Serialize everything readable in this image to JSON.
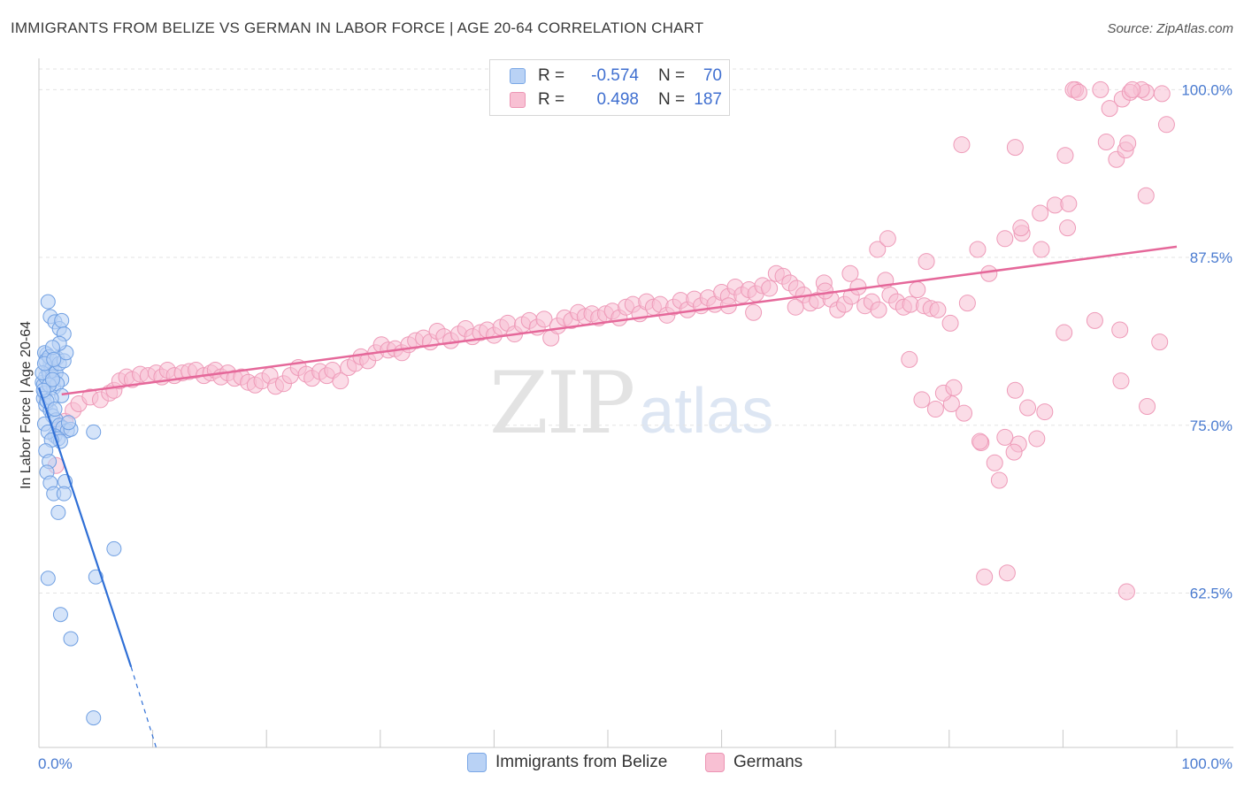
{
  "title": "IMMIGRANTS FROM BELIZE VS GERMAN IN LABOR FORCE | AGE 20-64 CORRELATION CHART",
  "source": "Source: ZipAtlas.com",
  "watermark": {
    "zip": "ZIP",
    "atlas": "atlas"
  },
  "legend": {
    "r_label": "R =",
    "n_label": "N =",
    "rows": [
      {
        "r": "-0.574",
        "n": "70",
        "fill": "#b9d2f5",
        "stroke": "#7aa7e6"
      },
      {
        "r": "0.498",
        "n": "187",
        "fill": "#f8c0d3",
        "stroke": "#ec94b3"
      }
    ]
  },
  "bottom_legend": [
    {
      "label": "Immigrants from Belize",
      "fill": "#b9d2f5",
      "stroke": "#7aa7e6"
    },
    {
      "label": "Germans",
      "fill": "#f8c0d3",
      "stroke": "#ec94b3"
    }
  ],
  "chart_data": {
    "type": "scatter",
    "title": "IMMIGRANTS FROM BELIZE VS GERMAN IN LABOR FORCE | AGE 20-64 CORRELATION CHART",
    "xlabel": "",
    "ylabel": "In Labor Force | Age 20-64",
    "xlim": [
      0,
      100
    ],
    "ylim": [
      51,
      102
    ],
    "x_tick_labels": [
      {
        "value": 0,
        "label": "0.0%"
      },
      {
        "value": 100,
        "label": "100.0%"
      }
    ],
    "y_tick_labels": [
      {
        "value": 100,
        "label": "100.0%"
      },
      {
        "value": 87.5,
        "label": "87.5%"
      },
      {
        "value": 75,
        "label": "75.0%"
      },
      {
        "value": 62.5,
        "label": "62.5%"
      }
    ],
    "grid": true,
    "legend_position": "top-center",
    "colors": {
      "belize_fill": "#b9d2f5",
      "belize_stroke": "#6f9fe2",
      "belize_line": "#2f6fd6",
      "german_fill": "#f8c0d3",
      "german_stroke": "#ee9ab8",
      "german_line": "#e5689a"
    },
    "series": [
      {
        "name": "Immigrants from Belize",
        "trend": {
          "x": [
            0,
            8.1
          ],
          "y": [
            77.8,
            57.0
          ],
          "dashed_to": [
            10.3,
            51.0
          ]
        },
        "points": [
          [
            0.3,
            78.2
          ],
          [
            0.4,
            78.0
          ],
          [
            0.5,
            77.4
          ],
          [
            0.6,
            78.6
          ],
          [
            0.7,
            80.3
          ],
          [
            0.8,
            79.1
          ],
          [
            0.9,
            78.8
          ],
          [
            1.0,
            79.6
          ],
          [
            0.5,
            80.4
          ],
          [
            0.6,
            79.8
          ],
          [
            0.9,
            80.1
          ],
          [
            1.1,
            79.2
          ],
          [
            1.2,
            78.6
          ],
          [
            1.3,
            77.8
          ],
          [
            1.5,
            78.9
          ],
          [
            1.6,
            80.0
          ],
          [
            1.8,
            79.6
          ],
          [
            2.0,
            78.4
          ],
          [
            2.2,
            79.8
          ],
          [
            2.4,
            80.4
          ],
          [
            0.8,
            84.2
          ],
          [
            1.0,
            83.1
          ],
          [
            1.4,
            82.7
          ],
          [
            1.8,
            82.2
          ],
          [
            2.0,
            82.8
          ],
          [
            2.2,
            81.8
          ],
          [
            1.8,
            81.1
          ],
          [
            1.2,
            80.8
          ],
          [
            0.4,
            77.0
          ],
          [
            0.6,
            76.5
          ],
          [
            1.0,
            76.1
          ],
          [
            1.2,
            75.7
          ],
          [
            1.5,
            75.4
          ],
          [
            1.8,
            75.0
          ],
          [
            2.1,
            74.8
          ],
          [
            2.5,
            74.6
          ],
          [
            2.8,
            74.7
          ],
          [
            1.4,
            74.2
          ],
          [
            1.7,
            74.0
          ],
          [
            1.9,
            73.8
          ],
          [
            0.5,
            75.1
          ],
          [
            0.8,
            74.5
          ],
          [
            1.1,
            73.9
          ],
          [
            0.6,
            73.1
          ],
          [
            0.9,
            72.3
          ],
          [
            0.7,
            71.5
          ],
          [
            1.0,
            70.7
          ],
          [
            1.3,
            69.9
          ],
          [
            2.3,
            70.8
          ],
          [
            2.2,
            69.9
          ],
          [
            1.7,
            68.5
          ],
          [
            0.8,
            63.6
          ],
          [
            1.9,
            60.9
          ],
          [
            2.8,
            59.1
          ],
          [
            4.8,
            74.5
          ],
          [
            6.6,
            65.8
          ],
          [
            5.0,
            63.7
          ],
          [
            4.8,
            53.2
          ],
          [
            0.3,
            78.9
          ],
          [
            0.5,
            79.6
          ],
          [
            1.3,
            79.9
          ],
          [
            1.6,
            78.1
          ],
          [
            2.0,
            77.2
          ],
          [
            1.1,
            77.0
          ],
          [
            0.7,
            76.8
          ],
          [
            1.4,
            76.2
          ],
          [
            2.6,
            75.2
          ],
          [
            0.9,
            78.0
          ],
          [
            1.2,
            78.4
          ],
          [
            0.4,
            77.6
          ]
        ]
      },
      {
        "name": "Germans",
        "trend": {
          "x": [
            2,
            100
          ],
          "y": [
            77.3,
            88.3
          ]
        },
        "points": [
          [
            1.5,
            72.0
          ],
          [
            2.0,
            74.8
          ],
          [
            2.3,
            75.3
          ],
          [
            3.0,
            76.1
          ],
          [
            3.5,
            76.6
          ],
          [
            4.5,
            77.1
          ],
          [
            5.4,
            76.9
          ],
          [
            6.2,
            77.4
          ],
          [
            6.6,
            77.6
          ],
          [
            7.1,
            78.3
          ],
          [
            7.7,
            78.6
          ],
          [
            8.2,
            78.4
          ],
          [
            8.9,
            78.8
          ],
          [
            9.6,
            78.7
          ],
          [
            10.3,
            78.9
          ],
          [
            10.8,
            78.6
          ],
          [
            11.3,
            79.1
          ],
          [
            11.9,
            78.7
          ],
          [
            12.6,
            78.9
          ],
          [
            13.2,
            79.0
          ],
          [
            13.8,
            79.1
          ],
          [
            14.5,
            78.7
          ],
          [
            15.1,
            78.9
          ],
          [
            15.5,
            79.1
          ],
          [
            16.0,
            78.6
          ],
          [
            16.6,
            78.9
          ],
          [
            17.2,
            78.5
          ],
          [
            17.8,
            78.6
          ],
          [
            18.4,
            78.2
          ],
          [
            19.0,
            78.0
          ],
          [
            19.6,
            78.3
          ],
          [
            20.3,
            78.7
          ],
          [
            20.8,
            77.9
          ],
          [
            21.5,
            78.1
          ],
          [
            22.1,
            78.7
          ],
          [
            22.8,
            79.3
          ],
          [
            23.5,
            78.8
          ],
          [
            24.0,
            78.5
          ],
          [
            24.7,
            79.0
          ],
          [
            25.3,
            78.7
          ],
          [
            25.8,
            79.1
          ],
          [
            26.5,
            78.3
          ],
          [
            27.2,
            79.3
          ],
          [
            27.8,
            79.6
          ],
          [
            28.3,
            80.1
          ],
          [
            28.9,
            79.8
          ],
          [
            29.6,
            80.4
          ],
          [
            30.1,
            81.0
          ],
          [
            30.7,
            80.6
          ],
          [
            31.3,
            80.7
          ],
          [
            31.9,
            80.4
          ],
          [
            32.5,
            81.0
          ],
          [
            33.1,
            81.3
          ],
          [
            33.8,
            81.5
          ],
          [
            34.4,
            81.2
          ],
          [
            35.0,
            82.0
          ],
          [
            35.6,
            81.6
          ],
          [
            36.2,
            81.3
          ],
          [
            36.9,
            81.8
          ],
          [
            37.5,
            82.2
          ],
          [
            38.1,
            81.6
          ],
          [
            38.8,
            81.9
          ],
          [
            39.4,
            82.1
          ],
          [
            40.0,
            81.7
          ],
          [
            40.6,
            82.3
          ],
          [
            41.2,
            82.6
          ],
          [
            41.8,
            81.8
          ],
          [
            42.5,
            82.5
          ],
          [
            43.1,
            82.8
          ],
          [
            43.8,
            82.3
          ],
          [
            44.4,
            82.9
          ],
          [
            45.0,
            81.5
          ],
          [
            45.6,
            82.4
          ],
          [
            46.2,
            83.0
          ],
          [
            46.8,
            82.8
          ],
          [
            47.4,
            83.4
          ],
          [
            48.0,
            83.1
          ],
          [
            48.6,
            83.3
          ],
          [
            49.2,
            83.0
          ],
          [
            49.8,
            83.3
          ],
          [
            50.4,
            83.5
          ],
          [
            51.0,
            83.0
          ],
          [
            51.6,
            83.8
          ],
          [
            52.2,
            84.0
          ],
          [
            52.8,
            83.3
          ],
          [
            53.4,
            84.2
          ],
          [
            54.0,
            83.8
          ],
          [
            54.6,
            84.0
          ],
          [
            55.2,
            83.2
          ],
          [
            55.8,
            83.8
          ],
          [
            56.4,
            84.3
          ],
          [
            57.0,
            83.6
          ],
          [
            57.6,
            84.4
          ],
          [
            58.2,
            83.9
          ],
          [
            58.8,
            84.5
          ],
          [
            59.4,
            84.0
          ],
          [
            60.0,
            84.9
          ],
          [
            60.6,
            84.6
          ],
          [
            61.2,
            85.3
          ],
          [
            61.8,
            84.7
          ],
          [
            62.4,
            85.1
          ],
          [
            63.0,
            84.8
          ],
          [
            63.6,
            85.4
          ],
          [
            64.2,
            85.2
          ],
          [
            64.8,
            86.3
          ],
          [
            65.4,
            86.1
          ],
          [
            66.0,
            85.6
          ],
          [
            66.6,
            85.2
          ],
          [
            67.2,
            84.7
          ],
          [
            67.8,
            84.1
          ],
          [
            68.4,
            84.3
          ],
          [
            69.0,
            85.6
          ],
          [
            69.6,
            84.4
          ],
          [
            70.2,
            83.6
          ],
          [
            70.8,
            84.0
          ],
          [
            71.4,
            84.6
          ],
          [
            72.0,
            85.3
          ],
          [
            72.6,
            83.9
          ],
          [
            73.2,
            84.2
          ],
          [
            73.8,
            83.6
          ],
          [
            74.4,
            85.8
          ],
          [
            74.8,
            84.7
          ],
          [
            75.4,
            84.2
          ],
          [
            76.0,
            83.8
          ],
          [
            76.6,
            84.0
          ],
          [
            77.2,
            85.1
          ],
          [
            77.8,
            83.9
          ],
          [
            78.4,
            83.7
          ],
          [
            60.6,
            83.9
          ],
          [
            62.8,
            83.4
          ],
          [
            66.5,
            83.8
          ],
          [
            69.1,
            85.0
          ],
          [
            71.3,
            86.3
          ],
          [
            73.7,
            88.1
          ],
          [
            74.6,
            88.9
          ],
          [
            78.0,
            87.2
          ],
          [
            82.5,
            88.1
          ],
          [
            84.9,
            88.9
          ],
          [
            86.4,
            89.3
          ],
          [
            88.0,
            90.8
          ],
          [
            89.3,
            91.4
          ],
          [
            90.5,
            91.5
          ],
          [
            97.3,
            92.1
          ],
          [
            94.7,
            94.8
          ],
          [
            95.5,
            95.5
          ],
          [
            93.8,
            96.1
          ],
          [
            95.7,
            96.0
          ],
          [
            90.2,
            95.1
          ],
          [
            85.8,
            95.7
          ],
          [
            81.1,
            95.9
          ],
          [
            88.1,
            88.1
          ],
          [
            90.1,
            81.9
          ],
          [
            92.8,
            82.8
          ],
          [
            95.0,
            82.1
          ],
          [
            98.5,
            81.2
          ],
          [
            97.4,
            76.4
          ],
          [
            95.1,
            78.3
          ],
          [
            88.4,
            76.0
          ],
          [
            87.7,
            74.0
          ],
          [
            86.1,
            73.6
          ],
          [
            82.8,
            73.7
          ],
          [
            80.2,
            76.6
          ],
          [
            76.5,
            79.9
          ],
          [
            77.6,
            76.9
          ],
          [
            78.8,
            76.2
          ],
          [
            79.5,
            77.4
          ],
          [
            80.4,
            77.8
          ],
          [
            81.3,
            75.9
          ],
          [
            82.7,
            73.8
          ],
          [
            84.9,
            74.1
          ],
          [
            84.4,
            70.9
          ],
          [
            85.7,
            73.0
          ],
          [
            86.9,
            76.3
          ],
          [
            84.0,
            72.2
          ],
          [
            85.8,
            77.6
          ],
          [
            83.1,
            63.7
          ],
          [
            85.1,
            64.0
          ],
          [
            95.6,
            62.6
          ],
          [
            95.2,
            99.3
          ],
          [
            98.7,
            99.7
          ],
          [
            97.3,
            99.8
          ],
          [
            96.9,
            100.0
          ],
          [
            91.1,
            100.0
          ],
          [
            90.9,
            100.0
          ],
          [
            93.3,
            100.0
          ],
          [
            91.4,
            99.8
          ],
          [
            95.9,
            99.8
          ],
          [
            94.1,
            98.6
          ],
          [
            99.1,
            97.4
          ],
          [
            96.1,
            100.0
          ],
          [
            90.4,
            89.7
          ],
          [
            79.0,
            83.6
          ],
          [
            80.1,
            82.6
          ],
          [
            81.6,
            84.1
          ],
          [
            83.5,
            86.3
          ],
          [
            86.3,
            89.7
          ]
        ]
      }
    ]
  }
}
